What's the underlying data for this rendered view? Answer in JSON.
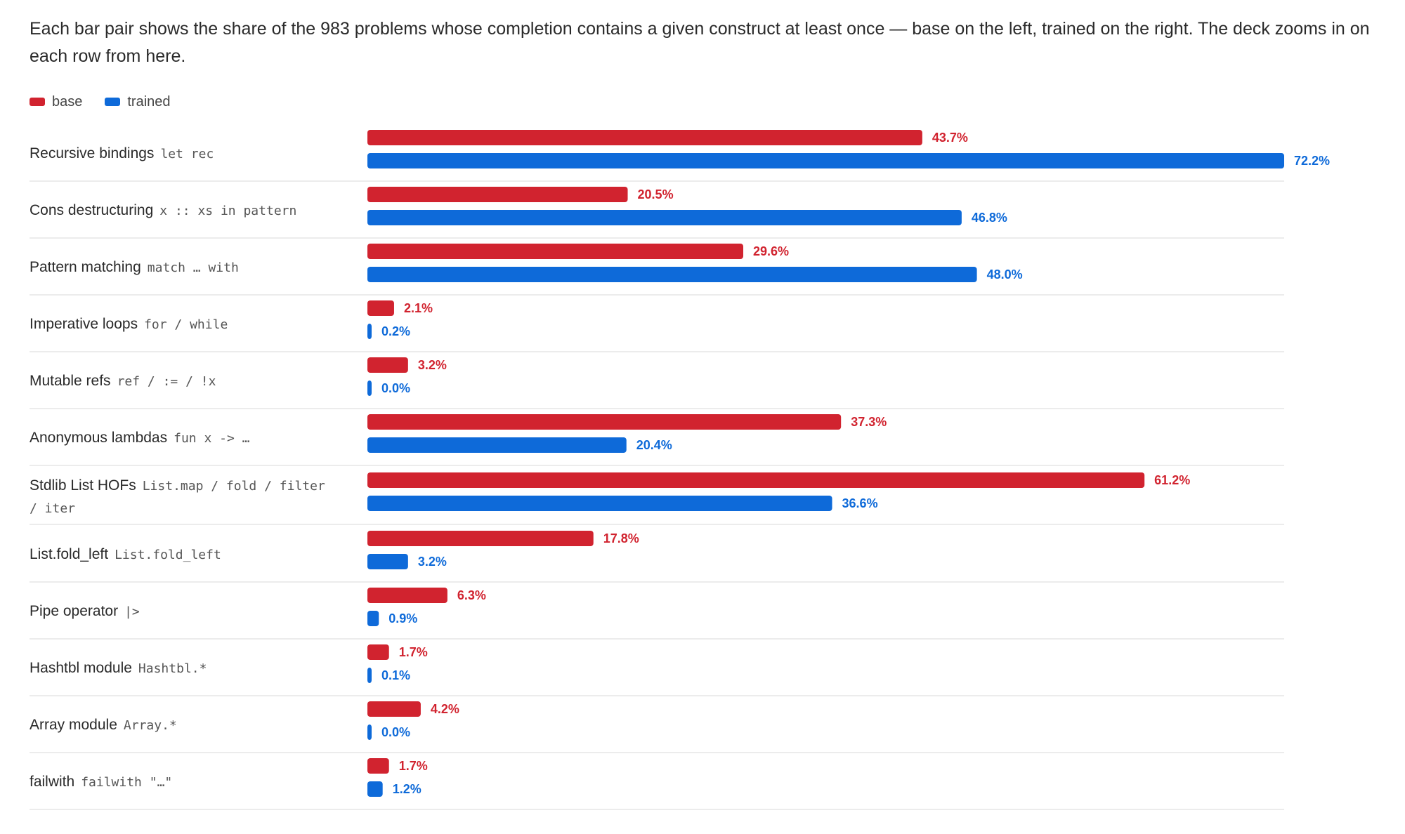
{
  "intro": {
    "text": "Each bar pair shows the share of the 983 problems whose completion contains a given construct at least once — base on the left, trained on the right. The deck zooms in on each row from here."
  },
  "colors": {
    "base": "#d1232f",
    "trained": "#0e6ad9",
    "divider": "#e6e6e6"
  },
  "chart_data": {
    "type": "bar",
    "orientation": "horizontal",
    "xlim": [
      0,
      72.2
    ],
    "series": [
      {
        "name": "base",
        "values": [
          43.7,
          20.5,
          29.6,
          2.1,
          3.2,
          37.3,
          61.2,
          17.8,
          6.3,
          1.7,
          4.2,
          1.7
        ]
      },
      {
        "name": "trained",
        "values": [
          72.2,
          46.8,
          48.0,
          0.2,
          0.0,
          20.4,
          36.6,
          3.2,
          0.9,
          0.1,
          0.0,
          1.2
        ]
      }
    ],
    "legend_placement": "top-left",
    "grid": false,
    "rows": [
      {
        "label": "Recursive bindings",
        "code": [
          "let rec"
        ],
        "base": 43.7,
        "trained": 72.2,
        "base_text": "43.7%",
        "trained_text": "72.2%"
      },
      {
        "label": "Cons destructuring",
        "code": [
          "x :: xs in pattern"
        ],
        "base": 20.5,
        "trained": 46.8,
        "base_text": "20.5%",
        "trained_text": "46.8%"
      },
      {
        "label": "Pattern matching",
        "code": [
          "match … with"
        ],
        "base": 29.6,
        "trained": 48.0,
        "base_text": "29.6%",
        "trained_text": "48.0%"
      },
      {
        "label": "Imperative loops",
        "code": [
          "for / while"
        ],
        "base": 2.1,
        "trained": 0.2,
        "base_text": "2.1%",
        "trained_text": "0.2%"
      },
      {
        "label": "Mutable refs",
        "code": [
          "ref / := / !x"
        ],
        "base": 3.2,
        "trained": 0.0,
        "base_text": "3.2%",
        "trained_text": "0.0%"
      },
      {
        "label": "Anonymous lambdas",
        "code": [
          "fun x -> …"
        ],
        "base": 37.3,
        "trained": 20.4,
        "base_text": "37.3%",
        "trained_text": "20.4%"
      },
      {
        "label": "Stdlib List HOFs",
        "code": [
          "List.map / fold / filter",
          "/ iter"
        ],
        "base": 61.2,
        "trained": 36.6,
        "base_text": "61.2%",
        "trained_text": "36.6%"
      },
      {
        "label": "List.fold_left",
        "code": [
          "List.fold_left"
        ],
        "base": 17.8,
        "trained": 3.2,
        "base_text": "17.8%",
        "trained_text": "3.2%"
      },
      {
        "label": "Pipe operator",
        "code": [
          "|>"
        ],
        "base": 6.3,
        "trained": 0.9,
        "base_text": "6.3%",
        "trained_text": "0.9%"
      },
      {
        "label": "Hashtbl module",
        "code": [
          "Hashtbl.*"
        ],
        "base": 1.7,
        "trained": 0.1,
        "base_text": "1.7%",
        "trained_text": "0.1%"
      },
      {
        "label": "Array module",
        "code": [
          "Array.*"
        ],
        "base": 4.2,
        "trained": 0.0,
        "base_text": "4.2%",
        "trained_text": "0.0%"
      },
      {
        "label": "failwith",
        "code": [
          "failwith \"…\""
        ],
        "base": 1.7,
        "trained": 1.2,
        "base_text": "1.7%",
        "trained_text": "1.2%"
      }
    ]
  }
}
